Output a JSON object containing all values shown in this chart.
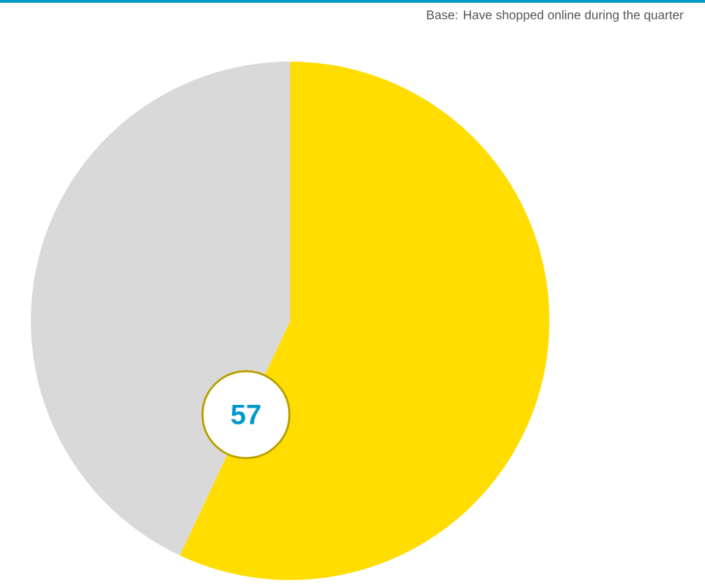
{
  "chart_data": {
    "type": "pie",
    "categories": [
      null,
      null
    ],
    "values": [
      57,
      43
    ],
    "colors": [
      "#ffdd00",
      "#d9d9d9"
    ],
    "value_labels": [
      "57",
      null
    ],
    "annotations": [
      "Base: Have shopped online during the quarter"
    ]
  }
}
